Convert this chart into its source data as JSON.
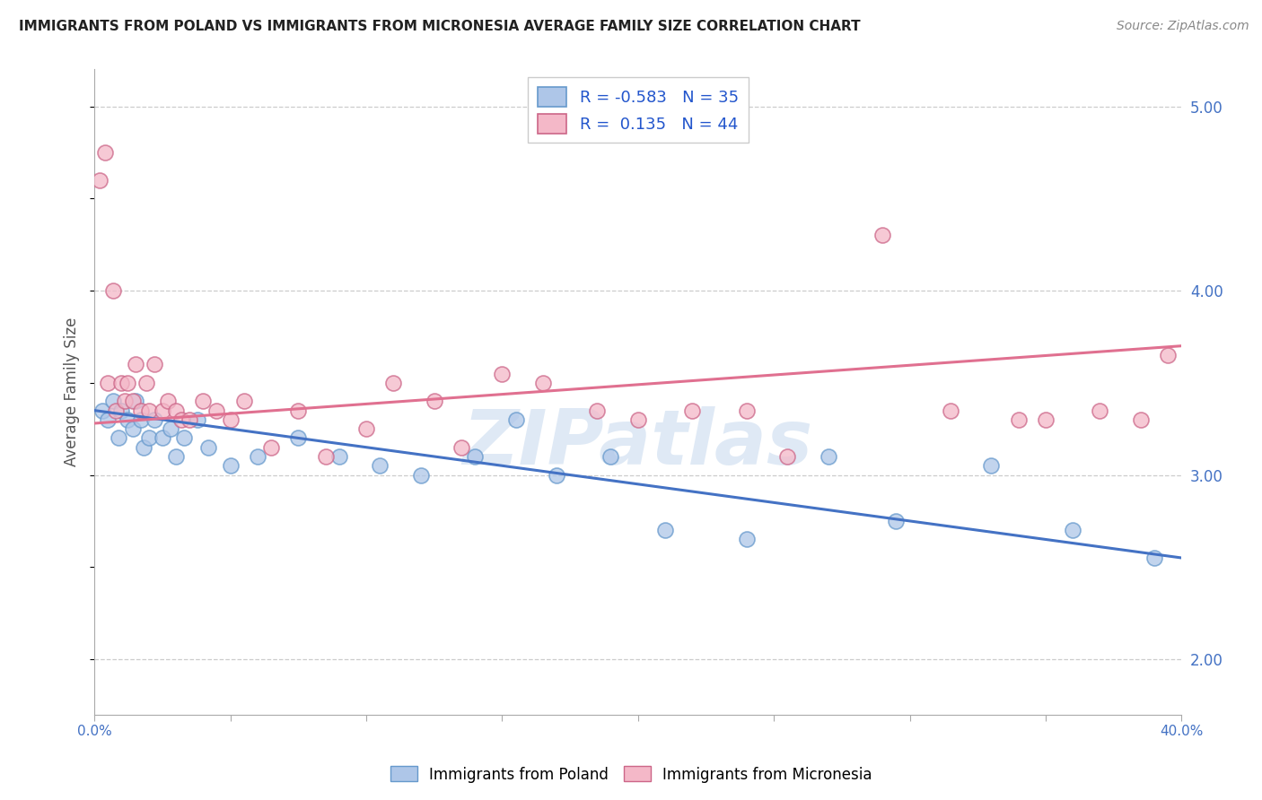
{
  "title": "IMMIGRANTS FROM POLAND VS IMMIGRANTS FROM MICRONESIA AVERAGE FAMILY SIZE CORRELATION CHART",
  "source": "Source: ZipAtlas.com",
  "ylabel": "Average Family Size",
  "xmin": 0.0,
  "xmax": 40.0,
  "ymin": 1.7,
  "ymax": 5.2,
  "yticks": [
    2.0,
    3.0,
    4.0,
    5.0
  ],
  "poland_color": "#aec6e8",
  "poland_line_color": "#4472c4",
  "poland_edge_color": "#6699cc",
  "micronesia_color": "#f4b8c8",
  "micronesia_line_color": "#e07090",
  "micronesia_edge_color": "#cc6688",
  "poland_R": -0.583,
  "poland_N": 35,
  "micronesia_R": 0.135,
  "micronesia_N": 44,
  "poland_line_y0": 3.35,
  "poland_line_y1": 2.55,
  "micronesia_line_y0": 3.28,
  "micronesia_line_y1": 3.7,
  "poland_scatter_x": [
    0.3,
    0.5,
    0.7,
    0.9,
    1.0,
    1.2,
    1.4,
    1.5,
    1.7,
    1.8,
    2.0,
    2.2,
    2.5,
    2.8,
    3.0,
    3.3,
    3.8,
    4.2,
    5.0,
    6.0,
    7.5,
    9.0,
    10.5,
    12.0,
    14.0,
    15.5,
    17.0,
    19.0,
    21.0,
    24.0,
    27.0,
    29.5,
    33.0,
    36.0,
    39.0
  ],
  "poland_scatter_y": [
    3.35,
    3.3,
    3.4,
    3.2,
    3.35,
    3.3,
    3.25,
    3.4,
    3.3,
    3.15,
    3.2,
    3.3,
    3.2,
    3.25,
    3.1,
    3.2,
    3.3,
    3.15,
    3.05,
    3.1,
    3.2,
    3.1,
    3.05,
    3.0,
    3.1,
    3.3,
    3.0,
    3.1,
    2.7,
    2.65,
    3.1,
    2.75,
    3.05,
    2.7,
    2.55
  ],
  "micronesia_scatter_x": [
    0.2,
    0.4,
    0.5,
    0.7,
    0.8,
    1.0,
    1.1,
    1.2,
    1.4,
    1.5,
    1.7,
    1.9,
    2.0,
    2.2,
    2.5,
    2.7,
    3.0,
    3.2,
    3.5,
    4.0,
    4.5,
    5.0,
    5.5,
    6.5,
    7.5,
    8.5,
    10.0,
    11.0,
    12.5,
    13.5,
    15.0,
    16.5,
    18.5,
    20.0,
    22.0,
    24.0,
    25.5,
    29.0,
    31.5,
    34.0,
    35.0,
    37.0,
    38.5,
    39.5
  ],
  "micronesia_scatter_y": [
    4.6,
    4.75,
    3.5,
    4.0,
    3.35,
    3.5,
    3.4,
    3.5,
    3.4,
    3.6,
    3.35,
    3.5,
    3.35,
    3.6,
    3.35,
    3.4,
    3.35,
    3.3,
    3.3,
    3.4,
    3.35,
    3.3,
    3.4,
    3.15,
    3.35,
    3.1,
    3.25,
    3.5,
    3.4,
    3.15,
    3.55,
    3.5,
    3.35,
    3.3,
    3.35,
    3.35,
    3.1,
    4.3,
    3.35,
    3.3,
    3.3,
    3.35,
    3.3,
    3.65
  ],
  "watermark": "ZIPatlas",
  "legend_label_color": "#2255cc",
  "legend_text_color": "#333333"
}
